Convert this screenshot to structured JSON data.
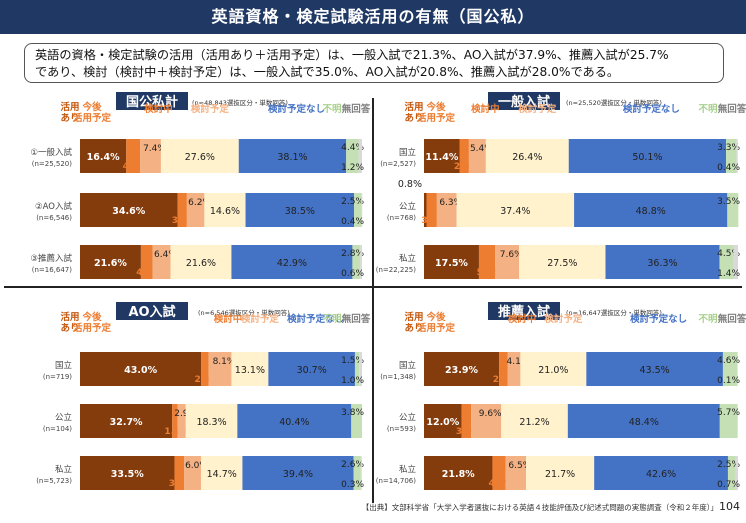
{
  "header": {
    "title": "英語資格・検定試験活用の有無（国公私）"
  },
  "summary": {
    "line1": "英語の資格・検定試験の活用（活用あり＋活用予定）は、一般入試で21.3%、AO入試が37.9%、推薦入試が25.7%",
    "line2": "であり、検討（検討中＋検討予定）は、一般入試で35.0%、AO入試が20.8%、推薦入試が28.0%である。"
  },
  "footer": {
    "source": "【出典】文部科学省「大学入学者選抜における英語４技能評価及び記述式問題の実態調査（令和２年度）」",
    "page": "104"
  },
  "legend": {
    "names": [
      "活用あり",
      "今後活用予定",
      "検討中",
      "検討予定",
      "検討予定なし",
      "不明",
      "無回答"
    ],
    "colors": [
      "#843c0c",
      "#ed7d31",
      "#f4b183",
      "#fff2cc",
      "#4472c4",
      "#c5e0b4",
      "#d9d9d9"
    ],
    "label_colors": [
      "#c55a11",
      "#ed7d31",
      "#ed7d31",
      "#f4b183",
      "#4472c4",
      "#a9d18e",
      "#7f7f7f"
    ]
  },
  "chart_data": [
    {
      "type": "bar",
      "title": "国公私計",
      "note": "(n=48,843選抜区分・単数回答)",
      "categories": [
        "①一般入試",
        "②AO入試",
        "③推薦入試"
      ],
      "category_n": [
        "(n=25,520)",
        "(n=6,546)",
        "(n=16,647)"
      ],
      "series": [
        {
          "name": "活用あり",
          "values": [
            16.4,
            34.6,
            21.6
          ]
        },
        {
          "name": "今後活用予定",
          "values": [
            4.9,
            3.3,
            4.1
          ]
        },
        {
          "name": "検討中",
          "values": [
            7.4,
            6.2,
            6.4
          ]
        },
        {
          "name": "検討予定",
          "values": [
            27.6,
            14.6,
            21.6
          ]
        },
        {
          "name": "検討予定なし",
          "values": [
            38.1,
            38.5,
            42.9
          ]
        },
        {
          "name": "不明",
          "values": [
            4.4,
            2.5,
            2.8
          ]
        },
        {
          "name": "無回答",
          "values": [
            1.2,
            0.4,
            0.6
          ]
        }
      ]
    },
    {
      "type": "bar",
      "title": "一般入試",
      "note": "(n=25,520選抜区分・単数回答)",
      "categories": [
        "国立",
        "公立",
        "私立"
      ],
      "category_n": [
        "(n=2,527)",
        "(n=768)",
        "(n=22,225)"
      ],
      "series": [
        {
          "name": "活用あり",
          "values": [
            11.4,
            0.8,
            17.5
          ]
        },
        {
          "name": "今後活用予定",
          "values": [
            2.9,
            3.3,
            5.2
          ]
        },
        {
          "name": "検討中",
          "values": [
            5.4,
            6.3,
            7.6
          ]
        },
        {
          "name": "検討予定",
          "values": [
            26.4,
            37.4,
            27.5
          ]
        },
        {
          "name": "検討予定なし",
          "values": [
            50.1,
            48.8,
            36.3
          ]
        },
        {
          "name": "不明",
          "values": [
            3.3,
            3.5,
            4.5
          ]
        },
        {
          "name": "無回答",
          "values": [
            0.4,
            0.0,
            1.4
          ]
        }
      ]
    },
    {
      "type": "bar",
      "title": "AO入試",
      "note": "(n=6,546選抜区分・単数回答)",
      "categories": [
        "国立",
        "公立",
        "私立"
      ],
      "category_n": [
        "(n=719)",
        "(n=104)",
        "(n=5,723)"
      ],
      "series": [
        {
          "name": "活用あり",
          "values": [
            43.0,
            32.7,
            33.5
          ]
        },
        {
          "name": "今後活用予定",
          "values": [
            2.6,
            1.9,
            3.4
          ]
        },
        {
          "name": "検討中",
          "values": [
            8.1,
            2.9,
            6.0
          ]
        },
        {
          "name": "検討予定",
          "values": [
            13.1,
            18.3,
            14.7
          ]
        },
        {
          "name": "検討予定なし",
          "values": [
            30.7,
            40.4,
            39.4
          ]
        },
        {
          "name": "不明",
          "values": [
            1.5,
            3.8,
            2.6
          ]
        },
        {
          "name": "無回答",
          "values": [
            1.0,
            0.0,
            0.3
          ]
        }
      ]
    },
    {
      "type": "bar",
      "title": "推薦入試",
      "note": "(n=16,647選抜区分・単数回答)",
      "categories": [
        "国立",
        "公立",
        "私立"
      ],
      "category_n": [
        "(n=1,348)",
        "(n=593)",
        "(n=14,706)"
      ],
      "series": [
        {
          "name": "活用あり",
          "values": [
            23.9,
            12.0,
            21.8
          ]
        },
        {
          "name": "今後活用予定",
          "values": [
            2.7,
            3.0,
            4.2
          ]
        },
        {
          "name": "検討中",
          "values": [
            4.1,
            9.6,
            6.5
          ]
        },
        {
          "name": "検討予定",
          "values": [
            21.0,
            21.2,
            21.7
          ]
        },
        {
          "name": "検討予定なし",
          "values": [
            43.5,
            48.4,
            42.6
          ]
        },
        {
          "name": "不明",
          "values": [
            4.6,
            5.7,
            2.5
          ]
        },
        {
          "name": "無回答",
          "values": [
            0.1,
            0.0,
            0.7
          ]
        }
      ]
    }
  ]
}
